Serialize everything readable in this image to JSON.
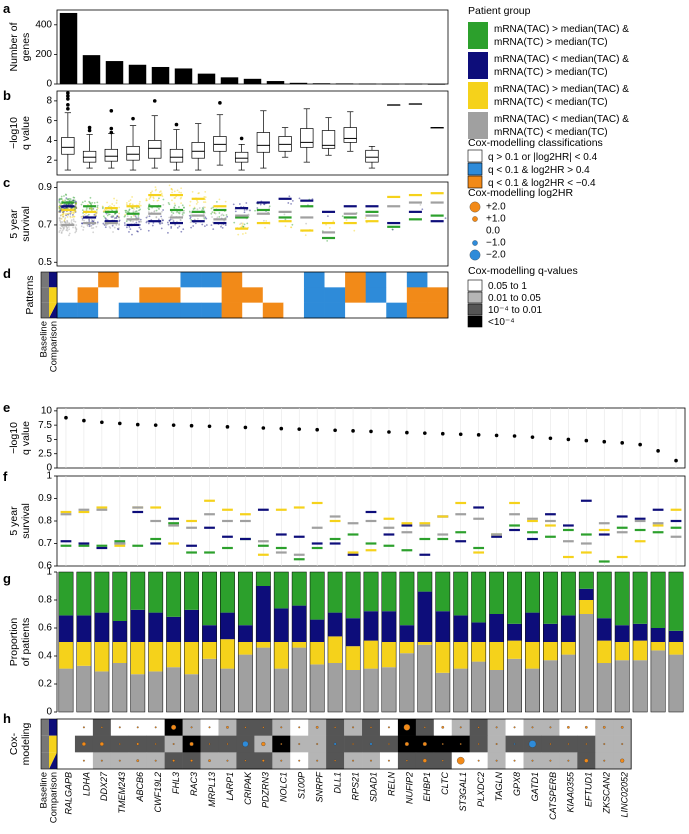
{
  "colors": {
    "group1": "#2ca02c",
    "group2": "#0d0d7a",
    "group3": "#f5d21b",
    "group4": "#a0a0a0",
    "blue": "#2e8bd9",
    "orange": "#f28a18",
    "q_shades": [
      "#ffffff",
      "#b5b5b5",
      "#555555",
      "#000000"
    ]
  },
  "panels": {
    "a": "a",
    "b": "b",
    "c": "c",
    "d": "d",
    "e": "e",
    "f": "f",
    "g": "g",
    "h": "h"
  },
  "legend": {
    "patient_group_title": "Patient group",
    "groups": [
      {
        "line1": "mRNA(TAC) > median(TAC) &",
        "line2": "mRNA(TC) > median(TC)"
      },
      {
        "line1": "mRNA(TAC) < median(TAC) &",
        "line2": "mRNA(TC) > median(TC)"
      },
      {
        "line1": "mRNA(TAC) > median(TAC) &",
        "line2": "mRNA(TC) < median(TC)"
      },
      {
        "line1": "mRNA(TAC) < median(TAC) &",
        "line2": "mRNA(TC) < median(TC)"
      }
    ],
    "class_title": "Cox-modelling classifications",
    "classes": [
      "q > 0.1 or |log2HR| < 0.4",
      "q < 0.1 & log2HR > 0.4",
      "q < 0.1 & log2HR < −0.4"
    ],
    "hr_title": "Cox-modelling log2HR",
    "hr_levels": [
      "+2.0",
      "+1.0",
      "0.0",
      "−1.0",
      "−2.0"
    ],
    "qv_title": "Cox-modelling q-values",
    "qv_levels": [
      "0.05 to 1",
      "0.01 to 0.05",
      "10⁻⁴ to 0.01",
      "<10⁻⁴"
    ]
  },
  "chart_data": [
    {
      "panel": "a",
      "type": "bar",
      "ylabel_lines": [
        "Number of",
        "genes"
      ],
      "ylim": [
        0,
        500
      ],
      "yticks": [
        0,
        200,
        400
      ],
      "values": [
        480,
        195,
        155,
        130,
        115,
        105,
        70,
        45,
        35,
        20,
        8,
        5,
        4,
        3,
        2,
        2,
        1
      ]
    },
    {
      "panel": "b",
      "type": "box",
      "ylabel_lines": [
        "−log10",
        "q value"
      ],
      "ylim": [
        0.5,
        9
      ],
      "yticks": [
        2,
        4,
        6,
        8
      ],
      "boxes": [
        {
          "lo": 1.0,
          "q1": 2.6,
          "med": 3.3,
          "q3": 4.3,
          "hi": 6.8
        },
        {
          "lo": 1.2,
          "q1": 1.8,
          "med": 2.3,
          "q3": 2.9,
          "hi": 4.6
        },
        {
          "lo": 1.2,
          "q1": 1.9,
          "med": 2.4,
          "q3": 3.1,
          "hi": 4.7
        },
        {
          "lo": 1.0,
          "q1": 2.0,
          "med": 2.6,
          "q3": 3.4,
          "hi": 5.5
        },
        {
          "lo": 1.2,
          "q1": 2.2,
          "med": 3.2,
          "q3": 4.0,
          "hi": 6.5
        },
        {
          "lo": 1.0,
          "q1": 1.8,
          "med": 2.3,
          "q3": 3.1,
          "hi": 5.1
        },
        {
          "lo": 1.0,
          "q1": 2.2,
          "med": 2.9,
          "q3": 3.8,
          "hi": 5.7
        },
        {
          "lo": 1.5,
          "q1": 2.9,
          "med": 3.6,
          "q3": 4.4,
          "hi": 6.6
        },
        {
          "lo": 1.0,
          "q1": 1.8,
          "med": 2.2,
          "q3": 2.8,
          "hi": 3.6
        },
        {
          "lo": 1.2,
          "q1": 2.8,
          "med": 3.5,
          "q3": 4.8,
          "hi": 7.0
        },
        {
          "lo": 2.3,
          "q1": 2.9,
          "med": 3.6,
          "q3": 4.4,
          "hi": 5.3
        },
        {
          "lo": 1.8,
          "q1": 3.3,
          "med": 3.8,
          "q3": 5.2,
          "hi": 7.2
        },
        {
          "lo": 2.5,
          "q1": 3.2,
          "med": 3.5,
          "q3": 5.0,
          "hi": 6.3
        },
        {
          "lo": 2.9,
          "q1": 3.8,
          "med": 4.2,
          "q3": 5.3,
          "hi": 6.9
        },
        {
          "lo": 1.2,
          "q1": 1.8,
          "med": 2.3,
          "q3": 3.0,
          "hi": 3.4
        },
        {
          "lo": 7.6,
          "q1": 7.6,
          "med": 7.6,
          "q3": 7.6,
          "hi": 7.6
        },
        {
          "lo": 7.7,
          "q1": 7.7,
          "med": 7.7,
          "q3": 7.7,
          "hi": 7.7
        },
        {
          "lo": 5.3,
          "q1": 5.3,
          "med": 5.3,
          "q3": 5.3,
          "hi": 5.3
        }
      ],
      "outliers": [
        [
          0,
          7.2
        ],
        [
          0,
          7.6
        ],
        [
          0,
          8.2
        ],
        [
          0,
          8.5
        ],
        [
          0,
          8.8
        ],
        [
          1,
          5.0
        ],
        [
          1,
          5.3
        ],
        [
          2,
          4.8
        ],
        [
          2,
          5.2
        ],
        [
          2,
          7.0
        ],
        [
          3,
          6.2
        ],
        [
          4,
          8.0
        ],
        [
          5,
          5.6
        ],
        [
          7,
          7.8
        ],
        [
          8,
          4.2
        ]
      ]
    },
    {
      "panel": "c",
      "type": "scatter",
      "ylabel_lines": [
        "5 year",
        "survival"
      ],
      "ylim": [
        0.48,
        0.93
      ],
      "yticks": [
        0.5,
        0.7,
        0.9
      ],
      "group_values": [
        [
          0.82,
          0.8,
          0.78,
          0.7
        ],
        [
          0.8,
          0.74,
          0.77,
          0.71
        ],
        [
          0.77,
          0.72,
          0.79,
          0.71
        ],
        [
          0.76,
          0.7,
          0.8,
          0.73
        ],
        [
          0.8,
          0.72,
          0.86,
          0.76
        ],
        [
          0.78,
          0.71,
          0.86,
          0.74
        ],
        [
          0.77,
          0.72,
          0.84,
          0.75
        ],
        [
          0.78,
          0.71,
          0.8,
          0.73
        ],
        [
          0.74,
          0.79,
          0.68,
          0.75
        ],
        [
          0.78,
          0.82,
          0.71,
          0.76
        ],
        [
          0.74,
          0.84,
          0.72,
          0.77
        ],
        [
          0.8,
          0.83,
          0.67,
          0.74
        ],
        [
          0.63,
          0.77,
          0.71,
          0.66
        ],
        [
          0.74,
          0.8,
          0.71,
          0.76
        ],
        [
          0.77,
          0.8,
          0.72,
          0.75
        ],
        [
          0.69,
          0.71,
          0.85,
          0.8
        ],
        [
          0.73,
          0.77,
          0.86,
          0.82
        ],
        [
          0.75,
          0.72,
          0.87,
          0.82
        ]
      ],
      "cloud_sizes": [
        260,
        90,
        90,
        80,
        70,
        70,
        55,
        45,
        40,
        20,
        10,
        8,
        6,
        4,
        3,
        2,
        2,
        1
      ]
    },
    {
      "panel": "d",
      "type": "heatmap",
      "ylabel": "Patterns",
      "rows_colors": [
        [
          "w",
          "w",
          "o",
          "w",
          "w",
          "w",
          "b",
          "b",
          "o",
          "w",
          "w",
          "w",
          "b",
          "w",
          "o",
          "b",
          "w",
          "b",
          "w"
        ],
        [
          "w",
          "o",
          "w",
          "w",
          "o",
          "o",
          "w",
          "w",
          "o",
          "o",
          "w",
          "w",
          "b",
          "b",
          "o",
          "b",
          "w",
          "o",
          "o"
        ],
        [
          "b",
          "b",
          "w",
          "b",
          "b",
          "b",
          "b",
          "b",
          "o",
          "w",
          "o",
          "w",
          "b",
          "b",
          "w",
          "w",
          "b",
          "o",
          "o"
        ]
      ]
    },
    {
      "panel": "e",
      "type": "scatter",
      "ylabel_lines": [
        "−log10",
        "q value"
      ],
      "ylim": [
        0,
        10.5
      ],
      "yticks": [
        0,
        2.5,
        5,
        7.5,
        10
      ],
      "ytick_labels": [
        "0",
        "2.5",
        "5",
        "7.5",
        "10"
      ],
      "values": [
        8.8,
        8.3,
        8.0,
        7.8,
        7.6,
        7.5,
        7.5,
        7.4,
        7.3,
        7.2,
        7.1,
        7.0,
        6.9,
        6.8,
        6.7,
        6.6,
        6.5,
        6.4,
        6.3,
        6.2,
        6.1,
        6.0,
        5.9,
        5.8,
        5.7,
        5.6,
        5.4,
        5.2,
        5.0,
        4.8,
        4.6,
        4.4,
        4.1,
        3.0,
        1.3
      ]
    },
    {
      "panel": "f",
      "type": "dot",
      "ylabel_lines": [
        "5 year",
        "survival"
      ],
      "ylim": [
        0.6,
        1.0
      ],
      "yticks": [
        0.6,
        0.7,
        0.8,
        0.9,
        1.0
      ],
      "ytick_labels": [
        "0.6",
        "0.7",
        "0.8",
        "0.9",
        "1"
      ],
      "group_values": [
        [
          0.69,
          0.71,
          0.84,
          0.83
        ],
        [
          0.69,
          0.7,
          0.84,
          0.85
        ],
        [
          0.69,
          0.68,
          0.86,
          0.85
        ],
        [
          0.71,
          0.7,
          0.69,
          0.7
        ],
        [
          0.69,
          0.84,
          0.86,
          0.86
        ],
        [
          0.72,
          0.7,
          0.86,
          0.8
        ],
        [
          0.79,
          0.81,
          0.7,
          0.78
        ],
        [
          0.66,
          0.69,
          0.8,
          0.77
        ],
        [
          0.66,
          0.77,
          0.89,
          0.83
        ],
        [
          0.68,
          0.73,
          0.85,
          0.8
        ],
        [
          0.72,
          0.72,
          0.83,
          0.8
        ],
        [
          0.69,
          0.85,
          0.65,
          0.71
        ],
        [
          0.68,
          0.74,
          0.85,
          0.66
        ],
        [
          0.63,
          0.73,
          0.86,
          0.65
        ],
        [
          0.68,
          0.7,
          0.88,
          0.77
        ],
        [
          0.72,
          0.7,
          0.8,
          0.82
        ],
        [
          0.74,
          0.65,
          0.66,
          0.79
        ],
        [
          0.7,
          0.84,
          0.67,
          0.8
        ],
        [
          0.69,
          0.74,
          0.81,
          0.77
        ],
        [
          0.67,
          0.78,
          0.79,
          0.75
        ],
        [
          0.72,
          0.65,
          0.79,
          0.78
        ],
        [
          0.72,
          0.82,
          0.82,
          0.74
        ],
        [
          0.75,
          0.71,
          0.88,
          0.83
        ],
        [
          0.68,
          0.86,
          0.66,
          0.81
        ],
        [
          0.74,
          0.73,
          0.74,
          0.74
        ],
        [
          0.78,
          0.76,
          0.88,
          0.83
        ],
        [
          0.75,
          0.72,
          0.8,
          0.81
        ],
        [
          0.73,
          0.83,
          0.78,
          0.8
        ],
        [
          0.76,
          0.78,
          0.64,
          0.71
        ],
        [
          0.74,
          0.89,
          0.66,
          0.7
        ],
        [
          0.62,
          0.74,
          0.76,
          0.79
        ],
        [
          0.77,
          0.82,
          0.64,
          0.75
        ],
        [
          0.76,
          0.81,
          0.71,
          0.8
        ],
        [
          0.75,
          0.85,
          0.78,
          0.79
        ],
        [
          0.77,
          0.8,
          0.85,
          0.73
        ]
      ]
    },
    {
      "panel": "g",
      "type": "bar",
      "stacked": true,
      "ylabel_lines": [
        "Proportion",
        "of patients"
      ],
      "ylim": [
        0,
        1
      ],
      "yticks": [
        0,
        0.2,
        0.4,
        0.6,
        0.8,
        1.0
      ],
      "ytick_labels": [
        "0",
        "0.2",
        "0.4",
        "0.6",
        "0.8",
        "1"
      ],
      "stack_order": [
        "group4",
        "group3",
        "group2",
        "group1"
      ],
      "proportions": [
        [
          0.31,
          0.19,
          0.19,
          0.31
        ],
        [
          0.33,
          0.17,
          0.19,
          0.31
        ],
        [
          0.29,
          0.21,
          0.21,
          0.29
        ],
        [
          0.35,
          0.15,
          0.15,
          0.35
        ],
        [
          0.27,
          0.23,
          0.23,
          0.27
        ],
        [
          0.29,
          0.21,
          0.21,
          0.29
        ],
        [
          0.32,
          0.18,
          0.18,
          0.32
        ],
        [
          0.27,
          0.23,
          0.23,
          0.27
        ],
        [
          0.38,
          0.12,
          0.12,
          0.38
        ],
        [
          0.31,
          0.21,
          0.19,
          0.29
        ],
        [
          0.41,
          0.09,
          0.12,
          0.38
        ],
        [
          0.46,
          0.04,
          0.4,
          0.1
        ],
        [
          0.31,
          0.19,
          0.24,
          0.26
        ],
        [
          0.46,
          0.04,
          0.26,
          0.24
        ],
        [
          0.34,
          0.16,
          0.16,
          0.34
        ],
        [
          0.35,
          0.19,
          0.17,
          0.29
        ],
        [
          0.3,
          0.17,
          0.2,
          0.33
        ],
        [
          0.31,
          0.2,
          0.21,
          0.28
        ],
        [
          0.32,
          0.18,
          0.22,
          0.28
        ],
        [
          0.42,
          0.08,
          0.12,
          0.38
        ],
        [
          0.48,
          0.02,
          0.36,
          0.14
        ],
        [
          0.28,
          0.22,
          0.22,
          0.28
        ],
        [
          0.31,
          0.19,
          0.19,
          0.31
        ],
        [
          0.36,
          0.14,
          0.14,
          0.36
        ],
        [
          0.3,
          0.2,
          0.2,
          0.3
        ],
        [
          0.38,
          0.13,
          0.12,
          0.37
        ],
        [
          0.31,
          0.19,
          0.21,
          0.29
        ],
        [
          0.37,
          0.13,
          0.13,
          0.37
        ],
        [
          0.41,
          0.09,
          0.19,
          0.31
        ],
        [
          0.7,
          0.1,
          0.08,
          0.12
        ],
        [
          0.35,
          0.16,
          0.16,
          0.33
        ],
        [
          0.37,
          0.13,
          0.12,
          0.38
        ],
        [
          0.37,
          0.14,
          0.12,
          0.37
        ],
        [
          0.44,
          0.06,
          0.1,
          0.4
        ],
        [
          0.41,
          0.09,
          0.08,
          0.42
        ]
      ]
    },
    {
      "panel": "h",
      "type": "heatmap",
      "ylabel_lines": [
        "Cox-",
        "modeling"
      ],
      "genes": [
        "RALGAPB",
        "LDHA",
        "DDX27",
        "TMEM243",
        "ABCB6",
        "CWF19L2",
        "FHL3",
        "RAC3",
        "MRPL13",
        "LARP1",
        "CRIPAK",
        "PDZRN3",
        "NOLC1",
        "S100P",
        "SNRPF",
        "DLL1",
        "RPS21",
        "SDAD1",
        "RELN",
        "NUFIP2",
        "EHBP1",
        "CLTC",
        "ST3GAL1",
        "PLXDC2",
        "TAGLN",
        "GPX8",
        "GATD1",
        "CATSPERB",
        "KIAA0355",
        "EFTUD1",
        "ZKSCAN2",
        "LINC02052"
      ],
      "q_levels": [
        [
          0,
          0,
          2,
          0,
          0,
          0,
          3,
          1,
          0,
          1,
          2,
          2,
          1,
          0,
          1,
          2,
          1,
          2,
          0,
          3,
          2,
          0,
          1,
          2,
          1,
          0,
          1,
          1,
          0,
          0,
          1,
          1
        ],
        [
          0,
          2,
          2,
          2,
          2,
          2,
          1,
          3,
          2,
          2,
          2,
          1,
          3,
          1,
          1,
          2,
          2,
          2,
          2,
          3,
          3,
          3,
          3,
          2,
          1,
          2,
          2,
          2,
          2,
          2,
          1,
          1
        ],
        [
          0,
          0,
          1,
          1,
          1,
          1,
          2,
          2,
          1,
          1,
          2,
          2,
          1,
          0,
          1,
          2,
          1,
          1,
          0,
          2,
          2,
          2,
          0,
          0,
          1,
          0,
          1,
          1,
          1,
          2,
          1,
          1
        ]
      ],
      "log2hr": [
        [
          0,
          0.3,
          0,
          0.3,
          0.3,
          0.3,
          1.0,
          0.3,
          0.3,
          0.5,
          0.3,
          0.3,
          0.3,
          0.3,
          0.5,
          0.3,
          0.3,
          0.3,
          0.3,
          1.3,
          0.3,
          0.5,
          0.3,
          0.3,
          0.3,
          0.3,
          0.3,
          0.3,
          0.5,
          0.5,
          0.5,
          0.5
        ],
        [
          0,
          0.8,
          0.8,
          0.3,
          0.5,
          0.3,
          0.3,
          0.8,
          0.3,
          0.3,
          -1.2,
          0.8,
          0.3,
          0.3,
          0.3,
          -0.5,
          0.3,
          -0.5,
          0.3,
          0.8,
          0.8,
          0.3,
          0.3,
          0.3,
          0.3,
          -0.3,
          -1.5,
          0.3,
          0.3,
          0.3,
          0.3,
          0.3
        ],
        [
          0,
          0.3,
          0.3,
          0.3,
          0.5,
          0.3,
          0.5,
          0.5,
          0.5,
          0.3,
          0.3,
          0.5,
          0.3,
          0.3,
          0.3,
          0.3,
          0.3,
          0.3,
          0.3,
          0.3,
          0.8,
          0.3,
          1.5,
          0.3,
          0.3,
          0.3,
          0.3,
          0.3,
          0.3,
          0.8,
          0.3,
          0.8
        ]
      ]
    }
  ],
  "baseline_labels": [
    "Baseline",
    "Comparison"
  ]
}
